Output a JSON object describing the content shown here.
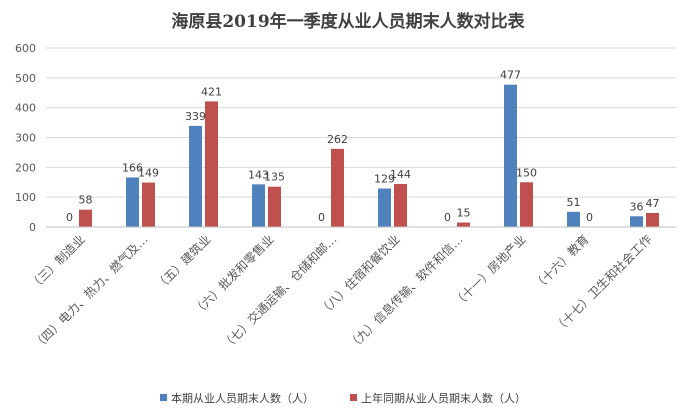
{
  "chart_data": {
    "type": "bar",
    "title": "海原县2019年一季度从业人员期末人数对比表",
    "categories": [
      "（三）制造业",
      "（四）电力、热力、燃气及…",
      "（五）建筑业",
      "（六）批发和零售业",
      "（七）交通运输、仓储和邮…",
      "（八）住宿和餐饮业",
      "（九）信息传输、软件和信…",
      "（十一）房地产业",
      "（十六）教育",
      "（十七）卫生和社会工作"
    ],
    "series": [
      {
        "name": "本期从业人员期末人数（人）",
        "values": [
          0,
          166,
          339,
          143,
          0,
          129,
          0,
          477,
          51,
          36
        ]
      },
      {
        "name": "上年同期从业人员期末人数（人）",
        "values": [
          58,
          149,
          421,
          135,
          262,
          144,
          15,
          150,
          0,
          47
        ]
      }
    ],
    "ylim": [
      0,
      600
    ],
    "yticks": [
      "0",
      "100",
      "200",
      "300",
      "400",
      "500",
      "600"
    ],
    "grid": true,
    "legend_position": "bottom",
    "colors": [
      "#4f81bd",
      "#c0504d"
    ]
  }
}
